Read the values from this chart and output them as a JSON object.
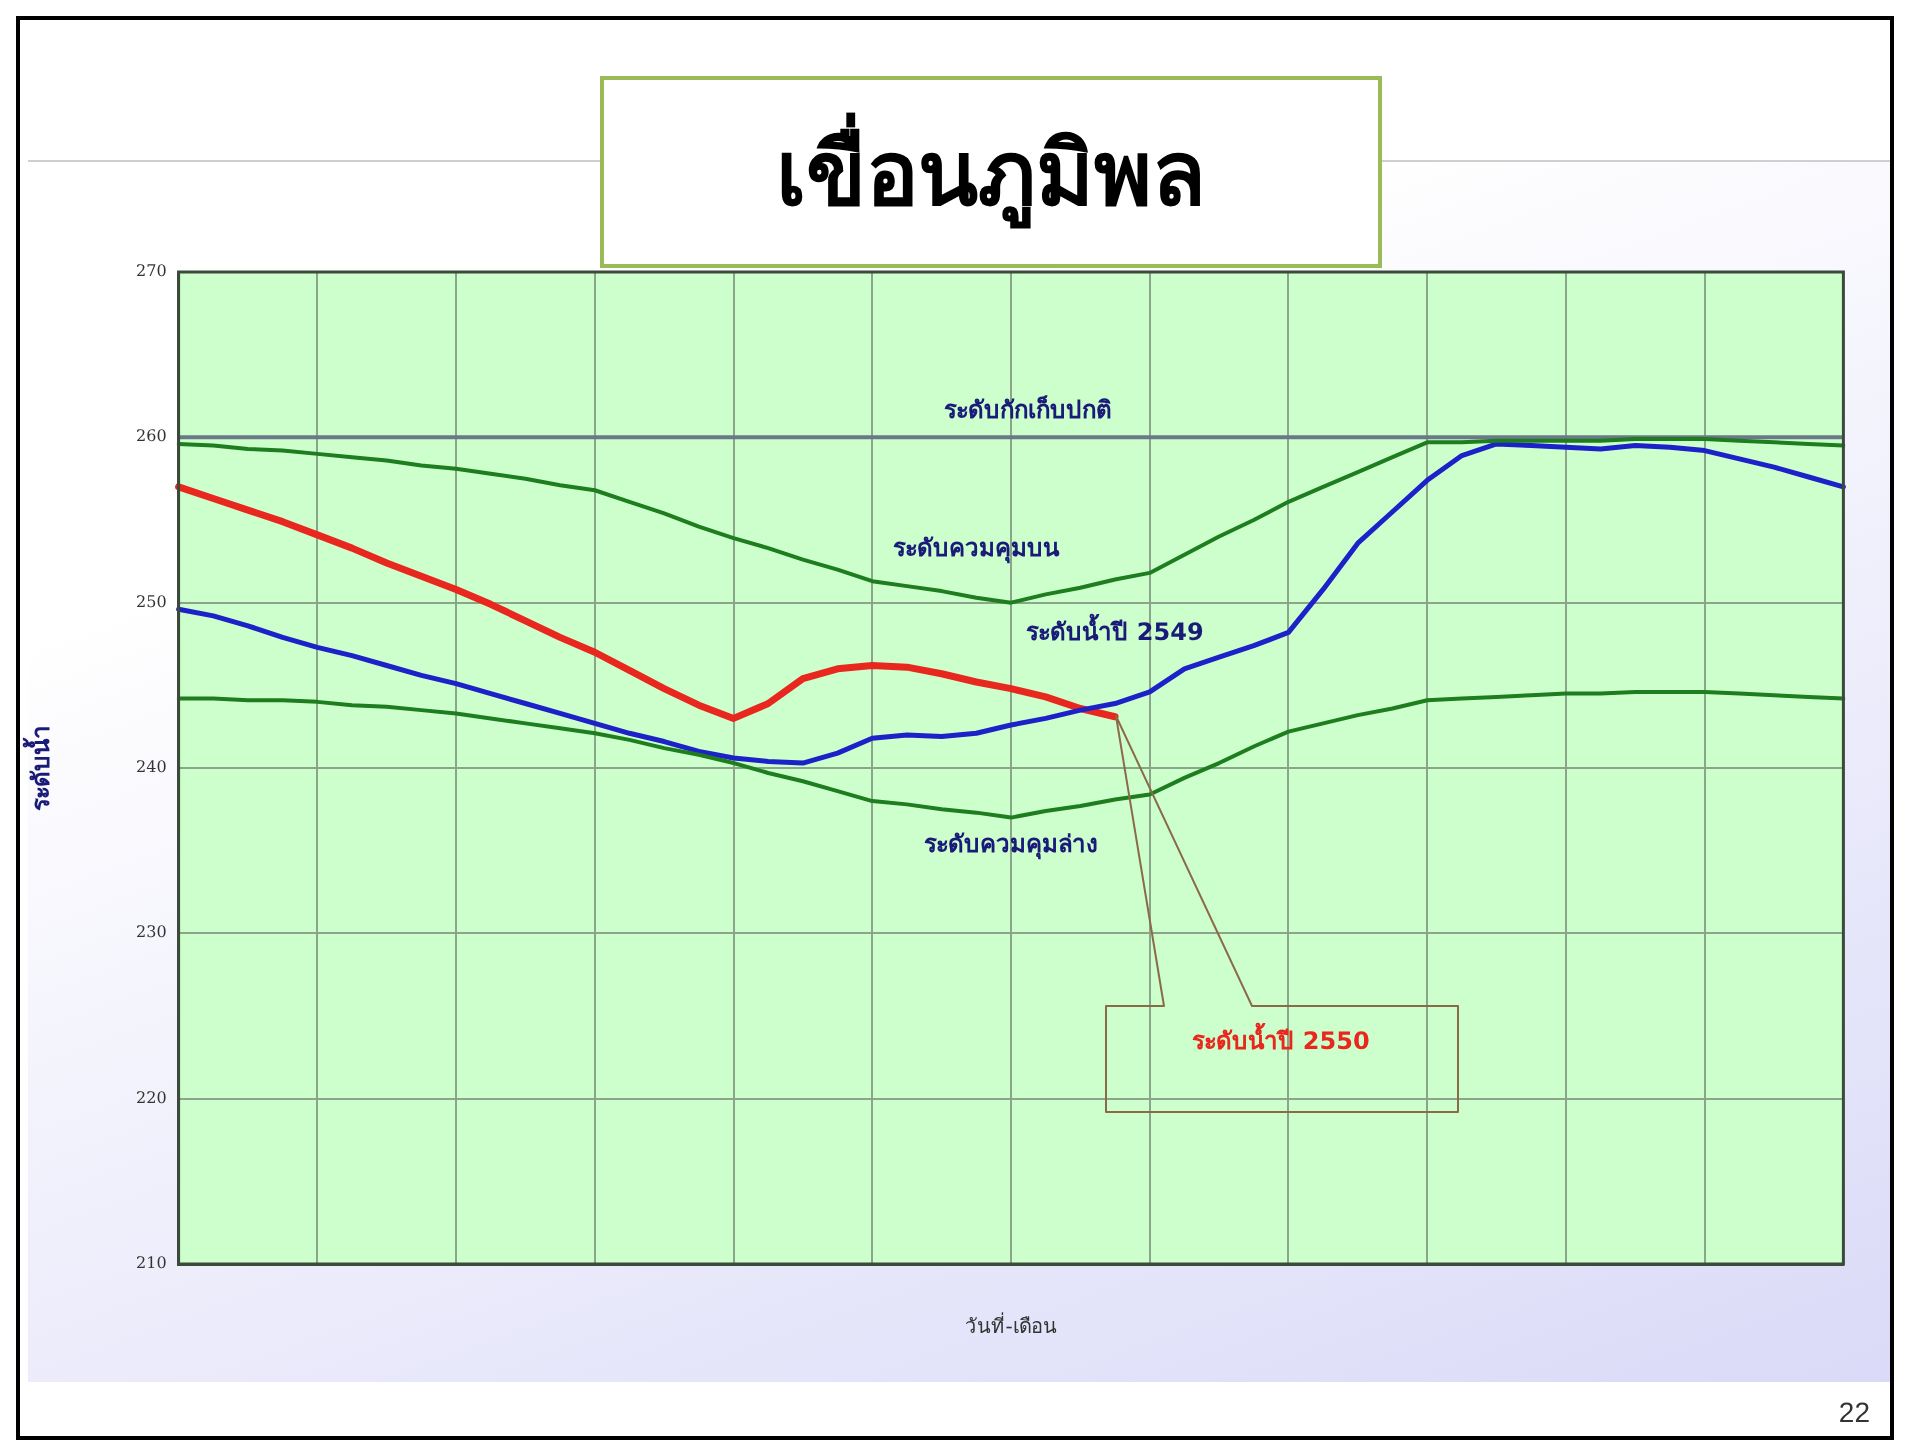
{
  "chart_data": {
    "type": "line",
    "title": "เขื่อนภูมิพล",
    "xlabel": "วันที่-เดือน",
    "ylabel": "ระดับน้ำ",
    "categories": [
      null,
      null,
      null,
      null,
      null,
      null,
      null,
      null,
      null,
      null,
      null,
      null,
      null,
      null,
      null,
      null,
      null,
      null,
      null,
      null,
      null,
      null,
      null,
      null,
      null,
      null,
      null,
      null,
      null,
      null,
      null,
      null,
      null,
      null,
      null,
      null,
      null,
      null,
      null,
      null,
      null,
      null,
      null,
      null,
      null,
      null,
      null,
      null,
      null
    ],
    "series": [
      {
        "name": "ระดับควมคุมบน",
        "color": "#1e7d1e",
        "values": [
          259.6,
          259.5,
          259.3,
          259.2,
          259.0,
          258.8,
          258.6,
          258.3,
          258.1,
          257.8,
          257.5,
          257.1,
          256.8,
          256.1,
          255.4,
          254.6,
          253.9,
          253.3,
          252.6,
          252.0,
          251.3,
          251.0,
          250.7,
          250.3,
          250.0,
          250.5,
          250.9,
          251.4,
          251.8,
          252.9,
          254.0,
          255.0,
          256.1,
          257.0,
          257.9,
          258.8,
          259.7,
          259.7,
          259.8,
          259.8,
          259.8,
          259.8,
          259.9,
          259.9,
          259.9,
          259.8,
          259.7,
          259.6,
          259.5
        ]
      },
      {
        "name": "ระดับควมคุมล่าง",
        "color": "#1e7d1e",
        "values": [
          244.2,
          244.2,
          244.1,
          244.1,
          244.0,
          243.8,
          243.7,
          243.5,
          243.3,
          243.0,
          242.7,
          242.4,
          242.1,
          241.7,
          241.2,
          240.8,
          240.3,
          239.7,
          239.2,
          238.6,
          238.0,
          237.8,
          237.5,
          237.3,
          237.0,
          237.4,
          237.7,
          238.1,
          238.4,
          239.4,
          240.3,
          241.3,
          242.2,
          242.7,
          243.2,
          243.6,
          244.1,
          244.2,
          244.3,
          244.4,
          244.5,
          244.5,
          244.6,
          244.6,
          244.6,
          244.5,
          244.4,
          244.3,
          244.2
        ]
      },
      {
        "name": "ระดับน้ำปี 2549",
        "color": "#1c22c8",
        "values": [
          249.6,
          249.2,
          248.6,
          247.9,
          247.3,
          246.8,
          246.2,
          245.6,
          245.1,
          244.5,
          243.9,
          243.3,
          242.7,
          242.1,
          241.6,
          241.0,
          240.6,
          240.4,
          240.3,
          240.9,
          241.8,
          242.0,
          241.9,
          242.1,
          242.6,
          243.0,
          243.5,
          243.9,
          244.6,
          246.0,
          246.7,
          247.4,
          248.2,
          250.8,
          253.6,
          255.5,
          257.4,
          258.9,
          259.6,
          259.5,
          259.4,
          259.3,
          259.5,
          259.4,
          259.2,
          258.7,
          258.2,
          257.6,
          257.0
        ]
      },
      {
        "name": "ระดับน้ำปี 2550",
        "color": "#e8281e",
        "values": [
          257.0,
          256.3,
          255.6,
          254.9,
          254.1,
          253.3,
          252.4,
          251.6,
          250.8,
          249.9,
          248.9,
          247.9,
          247.0,
          245.9,
          244.8,
          243.8,
          243.0,
          243.9,
          245.4,
          246.0,
          246.2,
          246.1,
          245.7,
          245.2,
          244.8,
          244.3,
          243.6,
          243.1,
          null,
          null,
          null,
          null,
          null,
          null,
          null,
          null,
          null,
          null,
          null,
          null,
          null,
          null,
          null,
          null,
          null,
          null,
          null,
          null,
          null
        ]
      }
    ],
    "ylim": [
      210,
      270
    ],
    "yticks": [
      210,
      220,
      230,
      240,
      250,
      260,
      270
    ],
    "grid": true,
    "legend": false,
    "marker": "none",
    "line_style": "solid",
    "ref_lines": [
      {
        "axis": "y",
        "value": 260,
        "label": "ระดับกักเก็บปกติ",
        "color": "#6b7889"
      }
    ],
    "annotations": [
      "22"
    ]
  }
}
